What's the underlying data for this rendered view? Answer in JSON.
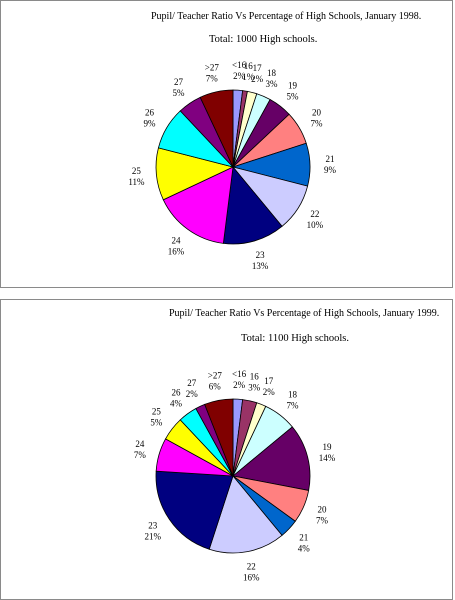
{
  "chart_data": [
    {
      "type": "pie",
      "title": "Pupil/ Teacher Ratio Vs Percentage of High Schools, January 1998.",
      "subtitle": "Total: 1000 High schools.",
      "slices": [
        {
          "label": "<16",
          "pct_label": "2%",
          "value": 2,
          "color": "#9999ff"
        },
        {
          "label": "16",
          "pct_label": "1%",
          "value": 1,
          "color": "#993366"
        },
        {
          "label": "17",
          "pct_label": "2%",
          "value": 2,
          "color": "#ffffcc"
        },
        {
          "label": "18",
          "pct_label": "3%",
          "value": 3,
          "color": "#ccffff"
        },
        {
          "label": "19",
          "pct_label": "5%",
          "value": 5,
          "color": "#660066"
        },
        {
          "label": "20",
          "pct_label": "7%",
          "value": 7,
          "color": "#ff8080"
        },
        {
          "label": "21",
          "pct_label": "9%",
          "value": 9,
          "color": "#0066cc"
        },
        {
          "label": "22",
          "pct_label": "10%",
          "value": 10,
          "color": "#ccccff"
        },
        {
          "label": "23",
          "pct_label": "13%",
          "value": 13,
          "color": "#000080"
        },
        {
          "label": "24",
          "pct_label": "16%",
          "value": 16,
          "color": "#ff00ff"
        },
        {
          "label": "25",
          "pct_label": "11%",
          "value": 11,
          "color": "#ffff00"
        },
        {
          "label": "26",
          "pct_label": "9%",
          "value": 9,
          "color": "#00ffff"
        },
        {
          "label": "27",
          "pct_label": "5%",
          "value": 5,
          "color": "#800080"
        },
        {
          "label": ">27",
          "pct_label": "7%",
          "value": 7,
          "color": "#800000"
        }
      ]
    },
    {
      "type": "pie",
      "title": "Pupil/ Teacher Ratio Vs Percentage of High Schools, January 1999.",
      "subtitle": "Total: 1100 High schools.",
      "slices": [
        {
          "label": "<16",
          "pct_label": "2%",
          "value": 2,
          "color": "#9999ff"
        },
        {
          "label": "16",
          "pct_label": "3%",
          "value": 3,
          "color": "#993366"
        },
        {
          "label": "17",
          "pct_label": "2%",
          "value": 2,
          "color": "#ffffcc"
        },
        {
          "label": "18",
          "pct_label": "7%",
          "value": 7,
          "color": "#ccffff"
        },
        {
          "label": "19",
          "pct_label": "14%",
          "value": 14,
          "color": "#660066"
        },
        {
          "label": "20",
          "pct_label": "7%",
          "value": 7,
          "color": "#ff8080"
        },
        {
          "label": "21",
          "pct_label": "4%",
          "value": 4,
          "color": "#0066cc"
        },
        {
          "label": "22",
          "pct_label": "16%",
          "value": 16,
          "color": "#ccccff"
        },
        {
          "label": "23",
          "pct_label": "21%",
          "value": 21,
          "color": "#000080"
        },
        {
          "label": "24",
          "pct_label": "7%",
          "value": 7,
          "color": "#ff00ff"
        },
        {
          "label": "25",
          "pct_label": "5%",
          "value": 5,
          "color": "#ffff00"
        },
        {
          "label": "26",
          "pct_label": "4%",
          "value": 4,
          "color": "#00ffff"
        },
        {
          "label": "27",
          "pct_label": "2%",
          "value": 2,
          "color": "#800080"
        },
        {
          "label": ">27",
          "pct_label": "6%",
          "value": 6,
          "color": "#800000"
        }
      ]
    }
  ]
}
